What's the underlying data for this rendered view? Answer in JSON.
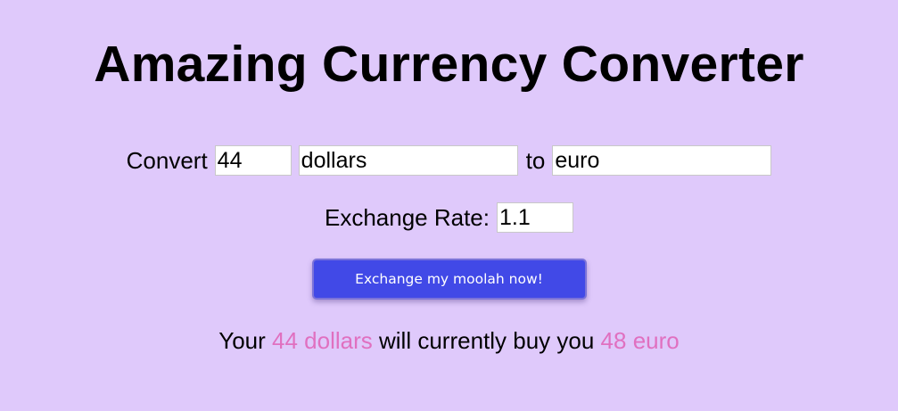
{
  "header": {
    "title": "Amazing Currency Converter"
  },
  "form": {
    "convert_label": "Convert",
    "amount_value": "44",
    "from_currency_value": "dollars",
    "to_label": "to",
    "to_currency_value": "euro",
    "rate_label": "Exchange Rate:",
    "rate_value": "1.1",
    "submit_label": "Exchange my moolah now!"
  },
  "result": {
    "prefix": "Your",
    "input_amount": "44 dollars",
    "middle": "will currently buy you",
    "output_amount": "48 euro"
  },
  "colors": {
    "background": "#dfc9fb",
    "button": "#4149e7",
    "highlight": "#e070c0"
  }
}
